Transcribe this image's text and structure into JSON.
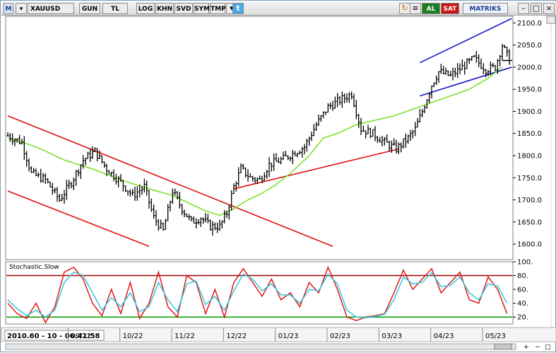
{
  "toolbar": {
    "logo": "M",
    "symbol": "XAUUSD",
    "buttons": [
      "GUN",
      "TL",
      "LOG",
      "KHN",
      "SVD",
      "SYM",
      "TMP"
    ],
    "buy": "AL",
    "sell": "SAT",
    "brand": "MATRIKS",
    "colors": {
      "buy": "#1e7d1e",
      "sell": "#c81414",
      "brand": "#1c3c8c"
    },
    "icons": [
      "twitter-icon",
      "refresh-icon",
      "settings-icon",
      "minimize-icon",
      "maximize-icon",
      "close-icon"
    ]
  },
  "status": {
    "cursor_text": "2010.60 - 10 - 06:41:58"
  },
  "chart_data": [
    {
      "type": "ohlc",
      "symbol": "XAUUSD",
      "y_axis_position": "right",
      "ylim": [
        1565,
        2115
      ],
      "yticks": [
        1600,
        1650,
        1700,
        1750,
        1800,
        1850,
        1900,
        1950,
        2000,
        2050,
        2100
      ],
      "x_tick_labels": [
        "09/22",
        "10/22",
        "11/22",
        "12/22",
        "01/23",
        "02/23",
        "03/23",
        "04/23",
        "05/23"
      ],
      "x_tick_index": [
        28,
        50,
        72,
        94,
        116,
        138,
        160,
        182,
        204
      ],
      "num_bars": 214,
      "close_anchors": [
        [
          0,
          1845
        ],
        [
          6,
          1830
        ],
        [
          10,
          1760
        ],
        [
          16,
          1745
        ],
        [
          22,
          1700
        ],
        [
          27,
          1740
        ],
        [
          32,
          1790
        ],
        [
          37,
          1810
        ],
        [
          42,
          1770
        ],
        [
          48,
          1740
        ],
        [
          53,
          1710
        ],
        [
          58,
          1730
        ],
        [
          62,
          1660
        ],
        [
          66,
          1630
        ],
        [
          70,
          1720
        ],
        [
          74,
          1680
        ],
        [
          78,
          1650
        ],
        [
          82,
          1660
        ],
        [
          86,
          1640
        ],
        [
          90,
          1640
        ],
        [
          93,
          1670
        ],
        [
          96,
          1730
        ],
        [
          99,
          1770
        ],
        [
          103,
          1750
        ],
        [
          107,
          1745
        ],
        [
          111,
          1780
        ],
        [
          116,
          1790
        ],
        [
          121,
          1805
        ],
        [
          126,
          1820
        ],
        [
          131,
          1870
        ],
        [
          136,
          1910
        ],
        [
          141,
          1925
        ],
        [
          146,
          1940
        ],
        [
          150,
          1860
        ],
        [
          155,
          1850
        ],
        [
          160,
          1830
        ],
        [
          165,
          1815
        ],
        [
          170,
          1840
        ],
        [
          173,
          1860
        ],
        [
          176,
          1900
        ],
        [
          180,
          1960
        ],
        [
          183,
          1990
        ],
        [
          188,
          1980
        ],
        [
          193,
          2000
        ],
        [
          198,
          2020
        ],
        [
          203,
          1995
        ],
        [
          207,
          2000
        ],
        [
          210,
          2050
        ],
        [
          213,
          2015
        ]
      ],
      "moving_average": {
        "color": "#80e030",
        "anchors": [
          [
            0,
            1840
          ],
          [
            12,
            1820
          ],
          [
            24,
            1790
          ],
          [
            36,
            1770
          ],
          [
            48,
            1745
          ],
          [
            60,
            1725
          ],
          [
            70,
            1710
          ],
          [
            78,
            1690
          ],
          [
            84,
            1675
          ],
          [
            90,
            1665
          ],
          [
            96,
            1680
          ],
          [
            102,
            1700
          ],
          [
            108,
            1715
          ],
          [
            114,
            1735
          ],
          [
            120,
            1760
          ],
          [
            128,
            1800
          ],
          [
            134,
            1840
          ],
          [
            140,
            1850
          ],
          [
            148,
            1870
          ],
          [
            156,
            1880
          ],
          [
            164,
            1890
          ],
          [
            172,
            1905
          ],
          [
            180,
            1920
          ],
          [
            188,
            1935
          ],
          [
            196,
            1950
          ],
          [
            204,
            1975
          ],
          [
            210,
            2000
          ]
        ]
      },
      "trendlines": [
        {
          "color": "#e01010",
          "from": [
            0,
            1890
          ],
          "to": [
            138,
            1595
          ]
        },
        {
          "color": "#e01010",
          "from": [
            0,
            1720
          ],
          "to": [
            60,
            1595
          ]
        },
        {
          "color": "#e01010",
          "from": [
            96,
            1725
          ],
          "to": [
            166,
            1815
          ]
        },
        {
          "color": "#1818c8",
          "from": [
            175,
            2010
          ],
          "to": [
            214,
            2110
          ]
        },
        {
          "color": "#1818c8",
          "from": [
            175,
            1935
          ],
          "to": [
            214,
            2000
          ]
        }
      ],
      "last_price": 2015
    },
    {
      "type": "line",
      "title": "Stochastic,Slow",
      "ylim": [
        10,
        100
      ],
      "yticks": [
        20,
        40,
        60,
        80,
        100
      ],
      "ytick_labels": [
        "20.",
        "40.",
        "60.",
        "80.",
        "100."
      ],
      "levels": [
        {
          "value": 80,
          "color": "#a00000"
        },
        {
          "value": 20,
          "color": "#00a000"
        }
      ],
      "series": [
        {
          "color": "#e01818",
          "anchors": [
            [
              0,
              40
            ],
            [
              4,
              25
            ],
            [
              8,
              18
            ],
            [
              12,
              40
            ],
            [
              16,
              12
            ],
            [
              20,
              35
            ],
            [
              24,
              85
            ],
            [
              28,
              92
            ],
            [
              32,
              75
            ],
            [
              36,
              40
            ],
            [
              40,
              22
            ],
            [
              44,
              60
            ],
            [
              48,
              25
            ],
            [
              52,
              70
            ],
            [
              56,
              18
            ],
            [
              60,
              40
            ],
            [
              64,
              85
            ],
            [
              68,
              35
            ],
            [
              72,
              20
            ],
            [
              76,
              80
            ],
            [
              80,
              70
            ],
            [
              84,
              25
            ],
            [
              88,
              60
            ],
            [
              92,
              20
            ],
            [
              96,
              70
            ],
            [
              100,
              90
            ],
            [
              104,
              70
            ],
            [
              108,
              50
            ],
            [
              112,
              75
            ],
            [
              116,
              45
            ],
            [
              120,
              55
            ],
            [
              124,
              35
            ],
            [
              128,
              70
            ],
            [
              132,
              55
            ],
            [
              136,
              92
            ],
            [
              140,
              60
            ],
            [
              144,
              20
            ],
            [
              148,
              15
            ],
            [
              152,
              20
            ],
            [
              156,
              22
            ],
            [
              160,
              25
            ],
            [
              164,
              55
            ],
            [
              168,
              88
            ],
            [
              172,
              60
            ],
            [
              176,
              75
            ],
            [
              180,
              90
            ],
            [
              184,
              55
            ],
            [
              188,
              70
            ],
            [
              192,
              85
            ],
            [
              196,
              45
            ],
            [
              200,
              40
            ],
            [
              204,
              78
            ],
            [
              208,
              60
            ],
            [
              212,
              25
            ]
          ]
        },
        {
          "color": "#30c8e0",
          "anchors": [
            [
              0,
              45
            ],
            [
              4,
              32
            ],
            [
              8,
              22
            ],
            [
              12,
              30
            ],
            [
              16,
              20
            ],
            [
              20,
              30
            ],
            [
              24,
              70
            ],
            [
              28,
              85
            ],
            [
              32,
              80
            ],
            [
              36,
              55
            ],
            [
              40,
              30
            ],
            [
              44,
              48
            ],
            [
              48,
              35
            ],
            [
              52,
              55
            ],
            [
              56,
              28
            ],
            [
              60,
              35
            ],
            [
              64,
              70
            ],
            [
              68,
              45
            ],
            [
              72,
              28
            ],
            [
              76,
              68
            ],
            [
              80,
              72
            ],
            [
              84,
              38
            ],
            [
              88,
              50
            ],
            [
              92,
              30
            ],
            [
              96,
              58
            ],
            [
              100,
              82
            ],
            [
              104,
              75
            ],
            [
              108,
              58
            ],
            [
              112,
              68
            ],
            [
              116,
              52
            ],
            [
              120,
              52
            ],
            [
              124,
              40
            ],
            [
              128,
              60
            ],
            [
              132,
              58
            ],
            [
              136,
              82
            ],
            [
              140,
              68
            ],
            [
              144,
              30
            ],
            [
              148,
              20
            ],
            [
              152,
              19
            ],
            [
              156,
              21
            ],
            [
              160,
              24
            ],
            [
              164,
              45
            ],
            [
              168,
              78
            ],
            [
              172,
              68
            ],
            [
              176,
              70
            ],
            [
              180,
              84
            ],
            [
              184,
              64
            ],
            [
              188,
              66
            ],
            [
              192,
              78
            ],
            [
              196,
              55
            ],
            [
              200,
              45
            ],
            [
              204,
              68
            ],
            [
              208,
              65
            ],
            [
              212,
              40
            ]
          ]
        }
      ]
    }
  ]
}
